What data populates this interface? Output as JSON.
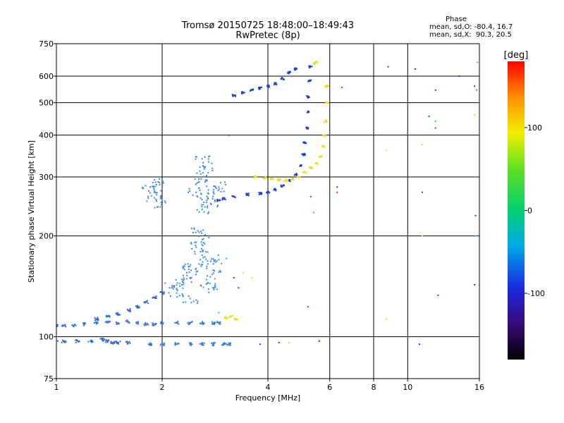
{
  "chart_data": {
    "type": "scatter",
    "title": "Tromsø 20150725 18:48:00–18:49:43",
    "subtitle": "RwPretec (8p)",
    "xlabel": "Frequency [MHz]",
    "ylabel": "Stationary phase Virtual Height [km]",
    "x_scale": "log",
    "y_scale": "log",
    "xlim": [
      1,
      16
    ],
    "ylim": [
      75,
      750
    ],
    "x_ticks": [
      1,
      2,
      4,
      6,
      8,
      10,
      16
    ],
    "x_tick_labels": [
      "1",
      "2",
      "4",
      "6",
      "8",
      "10",
      "16"
    ],
    "y_ticks": [
      75,
      100,
      200,
      300,
      400,
      500,
      600,
      750
    ],
    "y_tick_labels": [
      "75",
      "100",
      "200",
      "300",
      "400",
      "500",
      "600",
      "750"
    ],
    "grid": true,
    "phase_stats": {
      "heading": "Phase",
      "line_o": "mean, sd,O: -80.4, 16.7",
      "line_x": "mean, sd,X:  90.3, 20.5"
    },
    "colorbar": {
      "label": "[deg]",
      "range": [
        -180,
        180
      ],
      "ticks": [
        100,
        0,
        -100
      ],
      "tick_labels": [
        "100",
        "0",
        "-100"
      ]
    },
    "series": [
      {
        "phase_deg": -100,
        "color": "#3a7ad8",
        "kind": "band",
        "points": [
          [
            1.0,
            108
          ],
          [
            1.05,
            108
          ],
          [
            1.12,
            108
          ],
          [
            1.2,
            109
          ],
          [
            1.3,
            110
          ],
          [
            1.4,
            111
          ],
          [
            1.5,
            110
          ],
          [
            1.6,
            111
          ],
          [
            1.7,
            110
          ],
          [
            1.8,
            109
          ],
          [
            1.9,
            109
          ],
          [
            2.0,
            110
          ],
          [
            2.2,
            110
          ],
          [
            2.4,
            110
          ],
          [
            2.6,
            110
          ],
          [
            2.8,
            110
          ],
          [
            2.9,
            110
          ]
        ]
      },
      {
        "phase_deg": -100,
        "color": "#2f6fd0",
        "kind": "band",
        "points": [
          [
            1.0,
            97
          ],
          [
            1.05,
            97
          ],
          [
            1.15,
            97
          ],
          [
            1.25,
            97
          ],
          [
            1.35,
            98
          ],
          [
            1.4,
            97
          ],
          [
            1.45,
            96
          ],
          [
            1.5,
            96
          ],
          [
            1.6,
            96
          ]
        ]
      },
      {
        "phase_deg": -100,
        "color": "#3a7ad8",
        "kind": "band",
        "points": [
          [
            1.85,
            95
          ],
          [
            2.0,
            95
          ],
          [
            2.2,
            95
          ],
          [
            2.4,
            95
          ],
          [
            2.6,
            95
          ],
          [
            2.8,
            95
          ],
          [
            3.0,
            95
          ],
          [
            3.1,
            95
          ]
        ]
      },
      {
        "phase_deg": -110,
        "color": "#2a6ad0",
        "kind": "band",
        "points": [
          [
            1.3,
            113
          ],
          [
            1.4,
            115
          ],
          [
            1.5,
            117
          ],
          [
            1.6,
            120
          ],
          [
            1.7,
            123
          ],
          [
            1.8,
            127
          ],
          [
            1.9,
            131
          ],
          [
            2.0,
            135
          ]
        ]
      },
      {
        "phase_deg": -95,
        "color": "#3c8ae0",
        "kind": "cloud",
        "points": [
          [
            2.1,
            140
          ],
          [
            2.2,
            135
          ],
          [
            2.3,
            145
          ],
          [
            2.4,
            150
          ],
          [
            2.5,
            160
          ],
          [
            2.6,
            175
          ],
          [
            2.7,
            165
          ],
          [
            2.8,
            155
          ],
          [
            2.9,
            170
          ],
          [
            2.5,
            185
          ],
          [
            2.6,
            195
          ],
          [
            2.55,
            205
          ],
          [
            2.4,
            130
          ],
          [
            2.3,
            160
          ],
          [
            2.7,
            145
          ],
          [
            2.8,
            140
          ]
        ]
      },
      {
        "phase_deg": -95,
        "color": "#3c8ae0",
        "kind": "cloud",
        "points": [
          [
            1.85,
            280
          ],
          [
            1.9,
            270
          ],
          [
            1.95,
            290
          ],
          [
            1.9,
            260
          ],
          [
            2.0,
            250
          ],
          [
            2.5,
            270
          ],
          [
            2.55,
            290
          ],
          [
            2.6,
            300
          ],
          [
            2.65,
            320
          ],
          [
            2.6,
            340
          ],
          [
            2.7,
            260
          ],
          [
            2.75,
            250
          ],
          [
            2.8,
            270
          ],
          [
            2.9,
            280
          ],
          [
            2.6,
            240
          ]
        ]
      },
      {
        "phase_deg": -120,
        "color": "#1a3fd8",
        "kind": "trace",
        "points": [
          [
            2.9,
            255
          ],
          [
            3.0,
            258
          ],
          [
            3.2,
            262
          ],
          [
            3.5,
            266
          ],
          [
            3.8,
            268
          ],
          [
            4.0,
            270
          ],
          [
            4.2,
            275
          ],
          [
            4.4,
            282
          ],
          [
            4.6,
            292
          ],
          [
            4.8,
            305
          ],
          [
            4.95,
            325
          ],
          [
            5.05,
            350
          ],
          [
            5.1,
            380
          ],
          [
            5.15,
            420
          ],
          [
            5.2,
            470
          ],
          [
            5.22,
            520
          ],
          [
            5.25,
            580
          ],
          [
            5.28,
            640
          ]
        ]
      },
      {
        "phase_deg": -120,
        "color": "#1a3fd8",
        "kind": "trace",
        "points": [
          [
            3.2,
            525
          ],
          [
            3.4,
            535
          ],
          [
            3.6,
            545
          ],
          [
            3.8,
            552
          ],
          [
            4.0,
            560
          ],
          [
            4.2,
            570
          ],
          [
            4.4,
            590
          ],
          [
            4.6,
            615
          ],
          [
            4.8,
            630
          ]
        ]
      },
      {
        "phase_deg": 95,
        "color": "#e8e020",
        "kind": "trace",
        "points": [
          [
            3.7,
            300
          ],
          [
            3.9,
            298
          ],
          [
            4.1,
            296
          ],
          [
            4.3,
            294
          ],
          [
            4.5,
            293
          ],
          [
            4.7,
            295
          ],
          [
            4.9,
            300
          ],
          [
            5.1,
            310
          ],
          [
            5.3,
            320
          ],
          [
            5.5,
            330
          ],
          [
            5.65,
            345
          ],
          [
            5.75,
            370
          ],
          [
            5.8,
            400
          ],
          [
            5.85,
            440
          ],
          [
            5.9,
            500
          ],
          [
            5.88,
            560
          ]
        ]
      },
      {
        "phase_deg": 95,
        "color": "#e8e020",
        "kind": "trace",
        "points": [
          [
            3.05,
            114
          ],
          [
            3.15,
            115
          ],
          [
            3.25,
            113
          ],
          [
            5.4,
            655
          ],
          [
            5.5,
            660
          ]
        ]
      },
      {
        "phase_deg": -120,
        "color": "#1a3fd8",
        "kind": "scatter",
        "points": [
          [
            8.8,
            640
          ],
          [
            10.5,
            630
          ],
          [
            12,
            545
          ],
          [
            11.5,
            455
          ],
          [
            14,
            600
          ],
          [
            15.5,
            560
          ],
          [
            11,
            270
          ],
          [
            6.3,
            280
          ],
          [
            3.3,
            140
          ],
          [
            3.2,
            150
          ],
          [
            3.1,
            400
          ],
          [
            3.8,
            95
          ],
          [
            4.3,
            96
          ],
          [
            5.6,
            97
          ],
          [
            10.8,
            95
          ],
          [
            12.2,
            133
          ],
          [
            15.5,
            143
          ],
          [
            15.6,
            230
          ]
        ]
      },
      {
        "phase_deg": 95,
        "color": "#e8e020",
        "kind": "scatter",
        "points": [
          [
            8.7,
            360
          ],
          [
            11,
            375
          ],
          [
            8.7,
            113
          ],
          [
            11,
            200
          ],
          [
            15.5,
            460
          ],
          [
            5.6,
            98
          ],
          [
            4.6,
            96
          ],
          [
            3.6,
            150
          ],
          [
            3.4,
            155
          ]
        ]
      },
      {
        "phase_deg": 170,
        "color": "#e82020",
        "kind": "scatter",
        "points": [
          [
            6.5,
            555
          ],
          [
            12,
            420
          ],
          [
            6.3,
            270
          ],
          [
            5.2,
            123
          ],
          [
            5.3,
            262
          ]
        ]
      },
      {
        "phase_deg": 5,
        "color": "#20d050",
        "kind": "scatter",
        "points": [
          [
            15.8,
            660
          ],
          [
            12,
            440
          ],
          [
            15.7,
            545
          ]
        ]
      },
      {
        "phase_deg": -40,
        "color": "#20c0e0",
        "kind": "scatter",
        "points": [
          [
            3.1,
            96
          ],
          [
            5.4,
            235
          ],
          [
            2.9,
            118
          ],
          [
            15.6,
            200
          ]
        ]
      }
    ]
  }
}
